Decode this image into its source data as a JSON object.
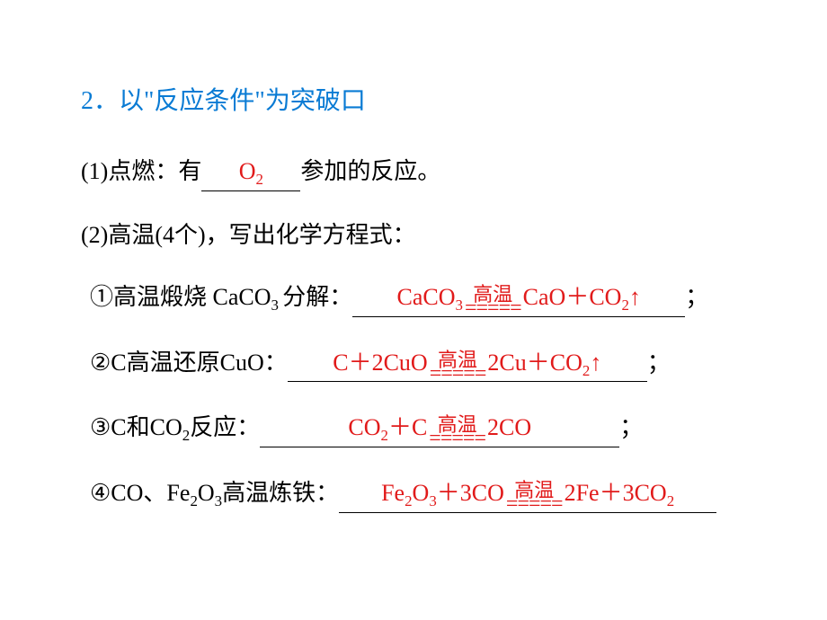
{
  "colors": {
    "headingBlue": "#0a7bd4",
    "answerRed": "#e11a1a",
    "text": "#000000",
    "bg": "#ffffff"
  },
  "fontSizes": {
    "heading": 28,
    "body": 26,
    "condition": 22
  },
  "heading": "2．以\"反应条件\"为突破口",
  "item1": {
    "prefix": "(1)点燃：有",
    "answer_html": "O<sub>2</sub>",
    "blankWidth": 110,
    "suffix": "参加的反应。"
  },
  "item2_intro": "(2)高温(4个)，写出化学方程式：",
  "sub1": {
    "prefix_html": "①高温煅烧 CaCO<sub>3 </sub>分解：",
    "lhs_html": "CaCO<sub>3</sub>",
    "cond": "高温",
    "rhs_html": "CaO＋CO<sub>2</sub>↑",
    "blankWidth": 370,
    "suffix": "；"
  },
  "sub2": {
    "prefix_html": "②C高温还原CuO：",
    "lhs_html": "C＋2CuO",
    "cond": "高温",
    "rhs_html": "2Cu＋CO<sub>2</sub>↑",
    "blankWidth": 400,
    "suffix": "；"
  },
  "sub3": {
    "prefix_html": "③C和CO<sub>2</sub>反应：",
    "lhs_html": "CO<sub>2</sub>＋C",
    "cond": "高温",
    "rhs_html": "2CO",
    "blankWidth": 400,
    "suffix": "；"
  },
  "sub4": {
    "prefix_html": "④CO、Fe<sub>2</sub>O<sub>3</sub>高温炼铁：",
    "lhs_html": "Fe<sub>2</sub>O<sub>3</sub>＋3CO",
    "cond": "高温",
    "rhs_html": "2Fe＋3CO<sub>2</sub>",
    "blankWidth": 420,
    "suffix": ""
  }
}
